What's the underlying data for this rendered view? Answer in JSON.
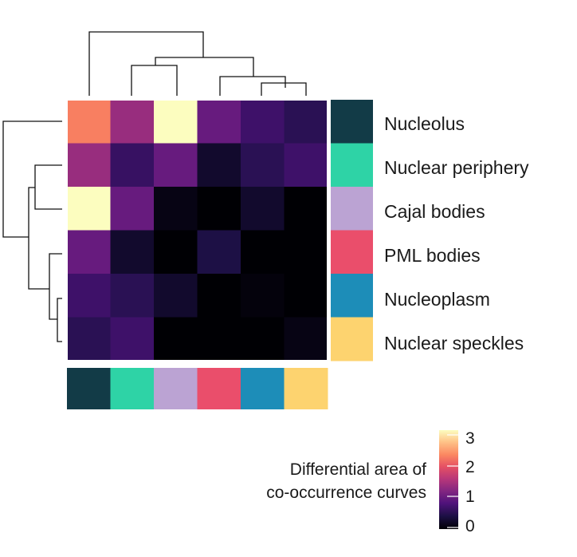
{
  "chart_data": {
    "type": "heatmap",
    "rows": [
      "Nucleolus",
      "Nuclear periphery",
      "Cajal bodies",
      "PML bodies",
      "Nucleoplasm",
      "Nuclear speckles"
    ],
    "columns": [
      "Nucleolus",
      "Nuclear periphery",
      "Cajal bodies",
      "PML bodies",
      "Nucleoplasm",
      "Nuclear speckles"
    ],
    "values": [
      [
        2.2,
        1.3,
        3.0,
        0.95,
        0.65,
        0.5
      ],
      [
        1.3,
        0.6,
        0.95,
        0.25,
        0.5,
        0.65
      ],
      [
        3.0,
        0.95,
        0.1,
        0.0,
        0.25,
        0.0
      ],
      [
        0.95,
        0.25,
        0.0,
        0.4,
        0.0,
        0.0
      ],
      [
        0.65,
        0.5,
        0.25,
        0.0,
        0.05,
        0.0
      ],
      [
        0.5,
        0.65,
        0.0,
        0.0,
        0.0,
        0.1
      ]
    ],
    "annotation_colors": [
      "#123b47",
      "#2ed3a6",
      "#bba3d3",
      "#ea4e6b",
      "#1d8db8",
      "#fdd36f"
    ],
    "colorbar": {
      "title_line1": "Differential area of",
      "title_line2": "co-occurrence curves",
      "ticks": [
        "3",
        "2",
        "1",
        "0"
      ],
      "range": [
        0,
        3
      ],
      "colormap": "magma"
    },
    "dendrograms": "row and column hierarchical clustering"
  }
}
